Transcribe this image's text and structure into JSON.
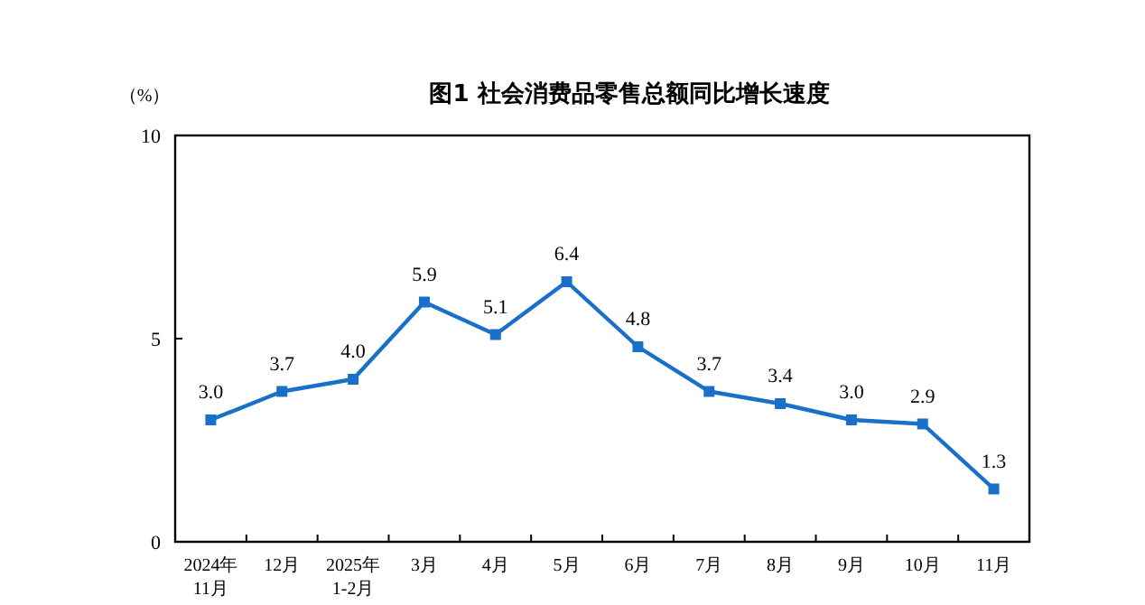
{
  "chart_data": {
    "type": "line",
    "title": "图1  社会消费品零售总额同比增长速度",
    "ylabel": "（%）",
    "categories": [
      "2024年\n11月",
      "12月",
      "2025年\n1-2月",
      "3月",
      "4月",
      "5月",
      "6月",
      "7月",
      "8月",
      "9月",
      "10月",
      "11月"
    ],
    "series": [
      {
        "color": "#1a6fc9",
        "values": [
          3.0,
          3.7,
          4.0,
          5.9,
          5.1,
          6.4,
          4.8,
          3.7,
          3.4,
          3.0,
          2.9,
          1.3
        ]
      }
    ],
    "value_labels": [
      "3.0",
      "3.7",
      "4.0",
      "5.9",
      "5.1",
      "6.4",
      "4.8",
      "3.7",
      "3.4",
      "3.0",
      "2.9",
      "1.3"
    ],
    "ylim": [
      0,
      10
    ],
    "yticks": [
      0,
      5,
      10
    ],
    "marker": "square",
    "line_style": "solid",
    "grid": false
  }
}
